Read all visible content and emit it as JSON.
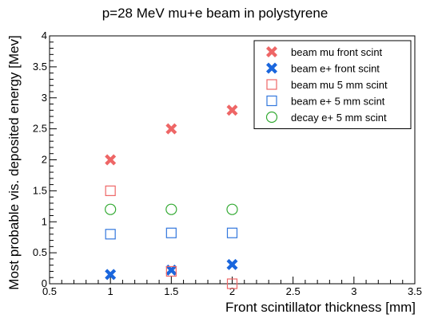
{
  "chart_data": {
    "type": "scatter",
    "title": "p=28 MeV mu+e beam in polystyrene",
    "xlabel": "Front scintillator thickness [mm]",
    "ylabel": "Most probable vis. deposited energy [Mev]",
    "xlim": [
      0.5,
      3.5
    ],
    "ylim": [
      0,
      4
    ],
    "x_ticks": [
      "0.5",
      "1",
      "1.5",
      "2",
      "2.5",
      "3",
      "3.5"
    ],
    "y_ticks": [
      "0",
      "0.5",
      "1",
      "1.5",
      "2",
      "2.5",
      "3",
      "3.5",
      "4"
    ],
    "grid": false,
    "legend_position": "top-right",
    "series": [
      {
        "name": "beam mu front scint",
        "marker": "x-cross",
        "color": "#ee6666",
        "points": [
          [
            1,
            2.0
          ],
          [
            1.5,
            2.5
          ],
          [
            2,
            2.8
          ]
        ]
      },
      {
        "name": "beam e+ front scint",
        "marker": "x-cross",
        "color": "#1a66dd",
        "points": [
          [
            1,
            0.15
          ],
          [
            1.5,
            0.22
          ],
          [
            2,
            0.31
          ]
        ]
      },
      {
        "name": "beam mu 5 mm scint",
        "marker": "open-square",
        "color": "#ee6666",
        "points": [
          [
            1,
            1.5
          ],
          [
            1.5,
            0.2
          ],
          [
            2,
            0.0
          ]
        ]
      },
      {
        "name": "beam e+ 5 mm scint",
        "marker": "open-square",
        "color": "#3377dd",
        "points": [
          [
            1,
            0.8
          ],
          [
            1.5,
            0.82
          ],
          [
            2,
            0.82
          ]
        ]
      },
      {
        "name": "decay e+ 5 mm scint",
        "marker": "open-circle",
        "color": "#33aa33",
        "points": [
          [
            1,
            1.2
          ],
          [
            1.5,
            1.2
          ],
          [
            2,
            1.2
          ]
        ]
      }
    ]
  }
}
